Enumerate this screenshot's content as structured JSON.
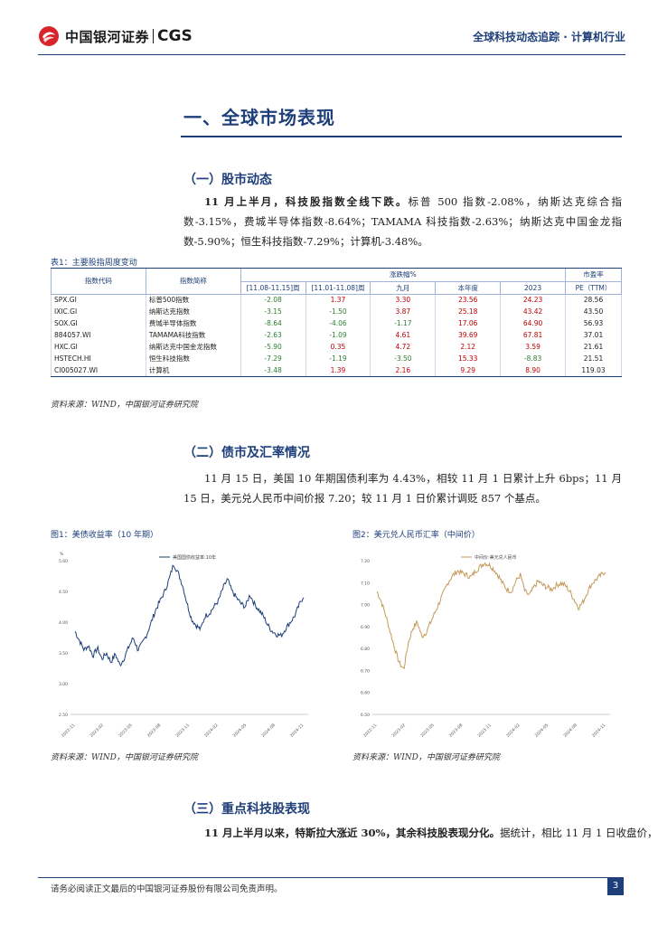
{
  "header": {
    "logo_cn": "中国银河证券",
    "logo_en": "CGS",
    "title": "全球科技动态追踪 · 计算机行业"
  },
  "section1": {
    "title": "一、全球市场表现"
  },
  "subsection1": {
    "title": "（一）股市动态",
    "lead": "11 月上半月，科技股指数全线下跌。",
    "body": "标普 500 指数-2.08%，纳斯达克综合指数-3.15%，费城半导体指数-8.64%；TAMAMA 科技指数-2.63%；纳斯达克中国金龙指数-5.90%；恒生科技指数-7.29%；计算机-3.48%。"
  },
  "table": {
    "caption": "表1：主要股指周度变动",
    "headers": {
      "code": "指数代码",
      "name": "指数简称",
      "group": "涨跌幅%",
      "p1": "[11.08-11.15]周",
      "p2": "[11.01-11.08]周",
      "p3": "九月",
      "p4": "本年度",
      "p5": "2023",
      "pe_top": "市盈率",
      "pe_bottom": "PE（TTM）"
    },
    "rows": [
      {
        "code": "SPX.GI",
        "name": "标普500指数",
        "v": [
          "-2.08",
          "1.37",
          "3.30",
          "23.56",
          "24.23"
        ],
        "pe": "28.56"
      },
      {
        "code": "IXIC.GI",
        "name": "纳斯达克指数",
        "v": [
          "-3.15",
          "-1.50",
          "3.87",
          "25.18",
          "43.42"
        ],
        "pe": "43.50"
      },
      {
        "code": "SOX.GI",
        "name": "费城半导体指数",
        "v": [
          "-8.64",
          "-4.06",
          "-1.17",
          "17.06",
          "64.90"
        ],
        "pe": "56.93"
      },
      {
        "code": "884057.WI",
        "name": "TAMAMA科技指数",
        "v": [
          "-2.63",
          "-1.09",
          "4.61",
          "39.69",
          "67.81"
        ],
        "pe": "37.01"
      },
      {
        "code": "HXC.GI",
        "name": "纳斯达克中国金龙指数",
        "v": [
          "-5.90",
          "0.35",
          "4.72",
          "2.12",
          "3.59"
        ],
        "pe": "21.61"
      },
      {
        "code": "HSTECH.HI",
        "name": "恒生科技指数",
        "v": [
          "-7.29",
          "-1.19",
          "-3.50",
          "15.33",
          "-8.83"
        ],
        "pe": "21.51"
      },
      {
        "code": "CI005027.WI",
        "name": "计算机",
        "v": [
          "-3.48",
          "1.39",
          "2.16",
          "9.29",
          "8.90"
        ],
        "pe": "119.03"
      }
    ],
    "source": "资料来源：WIND，中国银河证券研究院"
  },
  "subsection2": {
    "title": "（二）债市及汇率情况",
    "body": "11 月 15 日，美国 10 年期国债利率为 4.43%，相较 11 月 1 日累计上升 6bps；11 月 15 日，美元兑人民币中间价报 7.20；较 11 月 1 日价累计调贬 857 个基点。"
  },
  "figure1": {
    "caption": "图1：美债收益率（10 年期）",
    "legend": "美国国债收益率:10年",
    "unit": "%",
    "y_ticks": [
      "5.00",
      "4.50",
      "4.00",
      "3.50",
      "3.00",
      "2.50"
    ],
    "x_ticks": [
      "2022-11",
      "2023-02",
      "2023-05",
      "2023-08",
      "2023-11",
      "2024-02",
      "2024-05",
      "2024-08",
      "2024-11"
    ],
    "source": "资料来源：WIND，中国银河证券研究院"
  },
  "figure2": {
    "caption": "图2：美元兑人民币汇率（中间价）",
    "legend": "中间价:美元兑人民币",
    "y_ticks": [
      "7.20",
      "7.10",
      "7.00",
      "6.90",
      "6.80",
      "6.70",
      "6.60",
      "6.50"
    ],
    "x_ticks": [
      "2022-11",
      "2023-02",
      "2023-05",
      "2023-08",
      "2023-11",
      "2024-02",
      "2024-05",
      "2024-08",
      "2024-11"
    ],
    "source": "资料来源：WIND，中国银河证券研究院"
  },
  "subsection3": {
    "title": "（三）重点科技股表现",
    "lead": "11 月上半月以来，特斯拉大涨近 30%，其余科技股表现分化。",
    "body": "据统计，相比 11 月 1 日收盘价，"
  },
  "chart_data": [
    {
      "type": "line",
      "title": "图1：美债收益率（10 年期）",
      "ylabel": "%",
      "series": [
        {
          "name": "美国国债收益率:10年",
          "values": [
            3.85,
            3.7,
            3.55,
            3.62,
            3.45,
            3.58,
            3.4,
            3.5,
            3.35,
            3.48,
            3.3,
            3.42,
            3.6,
            3.75,
            3.55,
            3.65,
            3.8,
            4.0,
            4.2,
            4.35,
            4.5,
            4.7,
            4.95,
            4.8,
            4.6,
            4.3,
            4.05,
            3.95,
            3.88,
            4.1,
            4.15,
            4.25,
            4.35,
            4.55,
            4.7,
            4.5,
            4.4,
            4.3,
            4.25,
            4.45,
            4.3,
            4.2,
            4.1,
            3.95,
            3.85,
            3.8,
            3.78,
            3.9,
            4.0,
            4.1,
            4.28,
            4.43
          ]
        }
      ],
      "ylim": [
        2.5,
        5.0
      ]
    },
    {
      "type": "line",
      "title": "图2：美元兑人民币汇率（中间价）",
      "series": [
        {
          "name": "中间价:美元兑人民币",
          "values": [
            7.1,
            7.05,
            6.98,
            6.9,
            6.82,
            6.75,
            6.72,
            6.85,
            6.92,
            6.95,
            6.88,
            6.9,
            6.95,
            7.0,
            7.05,
            7.1,
            7.15,
            7.18,
            7.2,
            7.19,
            7.18,
            7.17,
            7.2,
            7.22,
            7.24,
            7.23,
            7.21,
            7.18,
            7.14,
            7.11,
            7.1,
            7.15,
            7.18,
            7.1,
            7.08,
            7.12,
            7.15,
            7.13,
            7.12,
            7.11,
            7.13,
            7.14,
            7.13,
            7.1,
            7.06,
            7.02,
            7.05,
            7.1,
            7.14,
            7.16,
            7.18,
            7.2
          ]
        }
      ],
      "ylim": [
        6.5,
        7.25
      ]
    }
  ]
}
